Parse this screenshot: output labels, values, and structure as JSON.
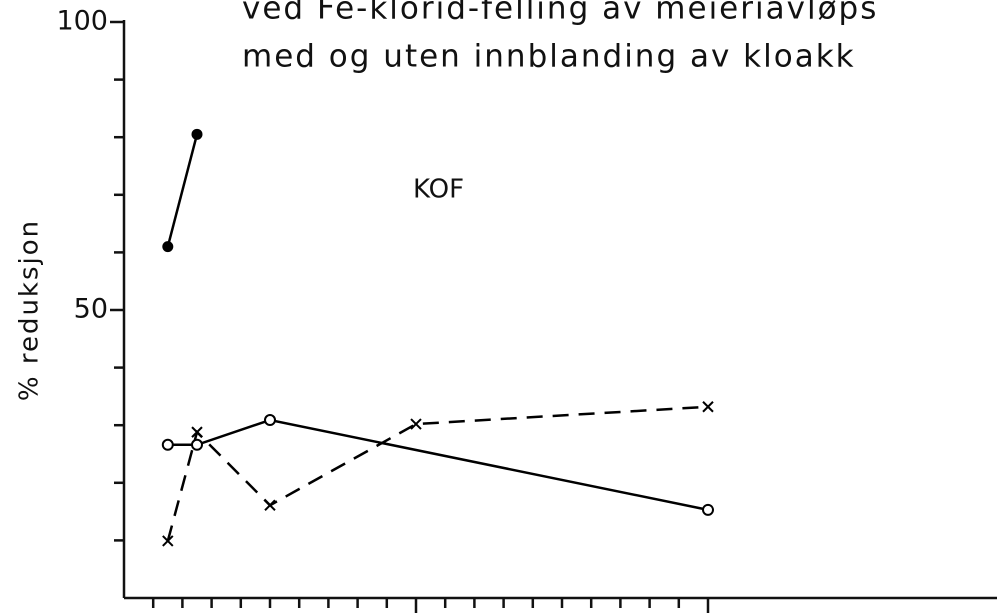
{
  "chart_data": {
    "type": "line",
    "title": [
      "ved Fe-klorid-felling av meieriavløps",
      "med og uten innblanding av kloakk"
    ],
    "annotation": "KOF",
    "y_label": "% reduksjon",
    "xlim": [
      0,
      30
    ],
    "xticks": [
      10,
      20
    ],
    "xminorticks": [
      1,
      2,
      3,
      4,
      5,
      6,
      7,
      8,
      9,
      11,
      12,
      13,
      14,
      15,
      16,
      17,
      18,
      19
    ],
    "ylim": [
      0,
      100
    ],
    "yticks": [
      50,
      100
    ],
    "yminorticks": [
      10,
      20,
      30,
      40,
      60,
      70,
      80,
      90
    ],
    "series": [
      {
        "x": [
          1.5,
          2.5
        ],
        "values": [
          61,
          80.5
        ],
        "color": "#000000",
        "marker": "filled-circle",
        "dash": false
      },
      {
        "x": [
          1.5,
          2.5,
          5,
          20
        ],
        "values": [
          26.6,
          26.6,
          30.9,
          15.3
        ],
        "color": "#000000",
        "marker": "open-circle",
        "dash": false
      },
      {
        "x": [
          1.5,
          2.5,
          5,
          10,
          20
        ],
        "values": [
          9.9,
          28.8,
          16.1,
          30.2,
          33.2
        ],
        "color": "#000000",
        "marker": "x",
        "dash": true
      }
    ]
  }
}
